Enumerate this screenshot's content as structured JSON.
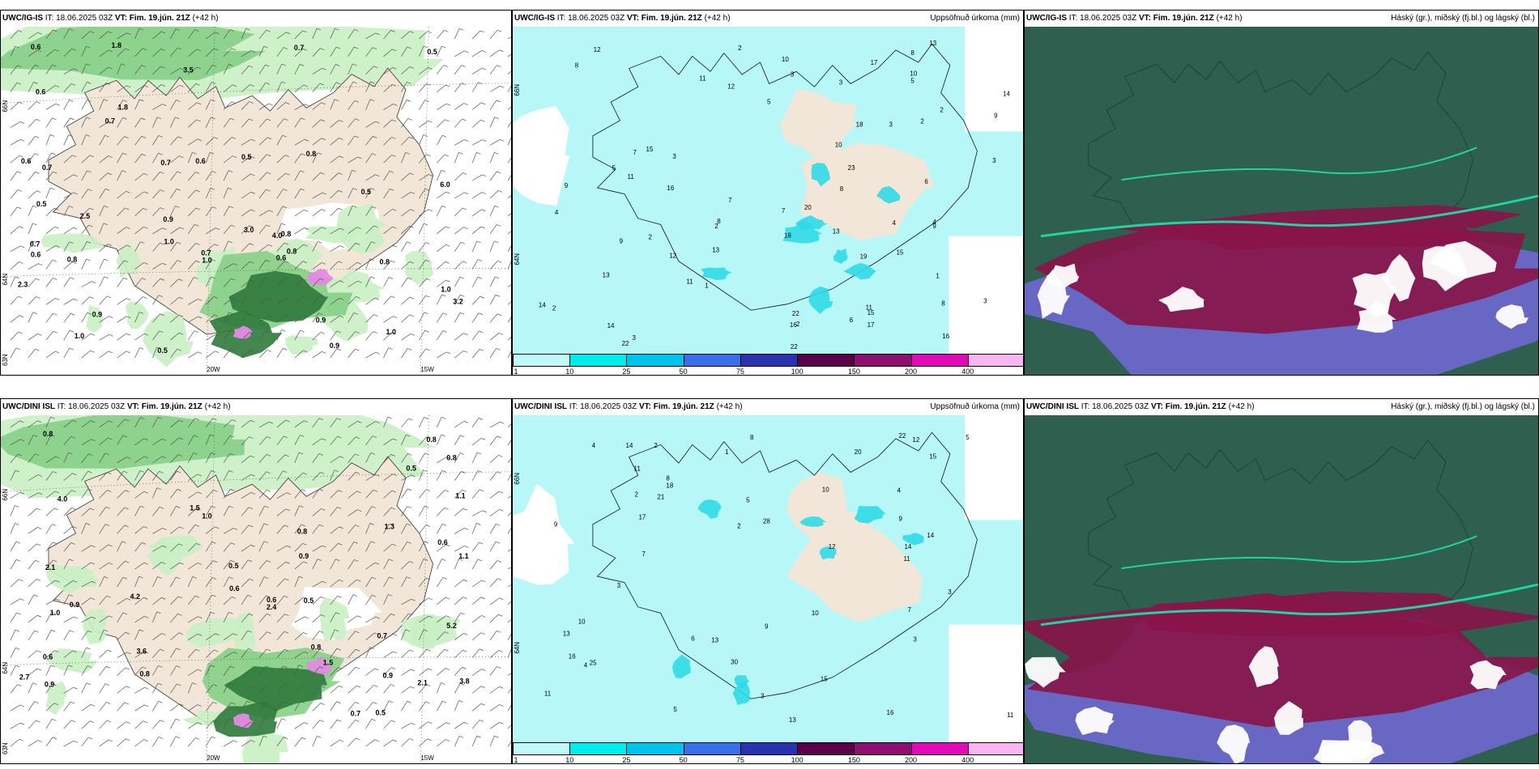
{
  "rows": [
    {
      "model": "UWC/IG-IS",
      "it_label": "IT:",
      "it_value": "18.06.2025 03Z",
      "vt_label": "VT:",
      "vt_value": "Fim. 19.jún. 21Z",
      "lead": "(+42 h)",
      "precip_title": "Uppsöfnuð úrkoma (mm)",
      "cloud_title": "Háský (gr.), miðský (fj.bl.) og lágský (bl.)"
    },
    {
      "model": "UWC/DINI ISL",
      "it_label": "IT:",
      "it_value": "18.06.2025 03Z",
      "vt_label": "VT:",
      "vt_value": "Fim. 19.jún. 21Z",
      "lead": "(+42 h)",
      "precip_title": "Uppsöfnuð úrkoma (mm)",
      "cloud_title": "Háský (gr.), miðský (fj.bl.) og lágský (bl.)"
    }
  ],
  "wind_axis": {
    "top": {
      "lat_n": "66N",
      "lat_mid": "64N",
      "lat_s": "63N",
      "lon_w": "20W",
      "lon_e": "15W"
    },
    "bottom": {
      "lat_n": "66N",
      "lat_mid": "64N",
      "lat_s": "63N",
      "lon_w": "20W",
      "lon_e": "15W"
    }
  },
  "precip_axis": {
    "lat_n": "66N",
    "lat_mid": "64N"
  },
  "colorbar": {
    "ticks": [
      "1",
      "10",
      "25",
      "50",
      "75",
      "100",
      "150",
      "200",
      "400"
    ],
    "colors": [
      "#bff9f9",
      "#00ecec",
      "#00c3ec",
      "#3a6fe8",
      "#2a32b0",
      "#5a004a",
      "#8e0f6e",
      "#e00bb5",
      "#f7b6f2"
    ]
  },
  "palette": {
    "land": "#f2e6d8",
    "sea_precip": "#b8f7f7",
    "green_light": "#c9efc4",
    "green_mid": "#86cf86",
    "green_dark": "#2f7a3c",
    "cloud_high": "#2f5f4f",
    "cloud_mid": "#8a1448",
    "cloud_low": "#6f69d0"
  },
  "precip_numbers_top": [
    "2",
    "1",
    "3",
    "2",
    "2",
    "3",
    "4",
    "13",
    "10",
    "9",
    "3",
    "11",
    "7",
    "2",
    "15",
    "8",
    "9",
    "5",
    "16",
    "10",
    "11",
    "13",
    "14",
    "9",
    "8",
    "11",
    "17",
    "18",
    "8",
    "7",
    "15",
    "13",
    "2",
    "3",
    "5",
    "16",
    "19",
    "20",
    "14",
    "14",
    "22",
    "13",
    "12",
    "11",
    "12",
    "15",
    "7",
    "3",
    "22",
    "18",
    "10",
    "8",
    "6",
    "3",
    "4",
    "5",
    "2",
    "1",
    "9",
    "12",
    "17",
    "16",
    "22",
    "23",
    "2",
    "3",
    "4",
    "8",
    "6"
  ],
  "precip_numbers_bottom": [
    "2",
    "3",
    "4",
    "5",
    "10",
    "9",
    "8",
    "14",
    "13",
    "12",
    "11",
    "5",
    "7",
    "4",
    "3",
    "22",
    "16",
    "15",
    "13",
    "9",
    "10",
    "11",
    "6",
    "14",
    "11",
    "12",
    "10",
    "21",
    "20",
    "17",
    "14",
    "15",
    "16",
    "25",
    "30",
    "28",
    "13",
    "11",
    "9",
    "8",
    "7",
    "2",
    "3",
    "4",
    "5",
    "1",
    "3",
    "2",
    "18"
  ],
  "wind_values_top": [
    "0.8",
    "0.7",
    "0.5",
    "0.6",
    "0.9",
    "0.6",
    "0.5",
    "0.8",
    "0.7",
    "0.5",
    "0.9",
    "0.6",
    "0.8",
    "0.7",
    "0.8",
    "1.0",
    "0.8",
    "0.6",
    "0.5",
    "0.7",
    "0.7",
    "4.0",
    "1.0",
    "1.0",
    "0.6",
    "0.7",
    "0.9",
    "0.5",
    "2.5",
    "3.2",
    "6.0",
    "1.0",
    "3.5",
    "0.6",
    "3.0",
    "1.8",
    "0.9",
    "2.3",
    "1.0",
    "1.8"
  ],
  "wind_values_bottom": [
    "0.8",
    "0.5",
    "0.8",
    "0.5",
    "0.9",
    "0.8",
    "0.5",
    "1.1",
    "0.6",
    "0.9",
    "0.6",
    "0.8",
    "1.1",
    "0.9",
    "0.8",
    "1.5",
    "2.7",
    "5.2",
    "3.6",
    "2.4",
    "1.5",
    "2.1",
    "4.0",
    "4.2",
    "1.0",
    "0.8",
    "2.1",
    "0.5",
    "0.6",
    "0.9",
    "1.0",
    "3.8",
    "0.7",
    "0.6",
    "1.3",
    "0.7"
  ]
}
